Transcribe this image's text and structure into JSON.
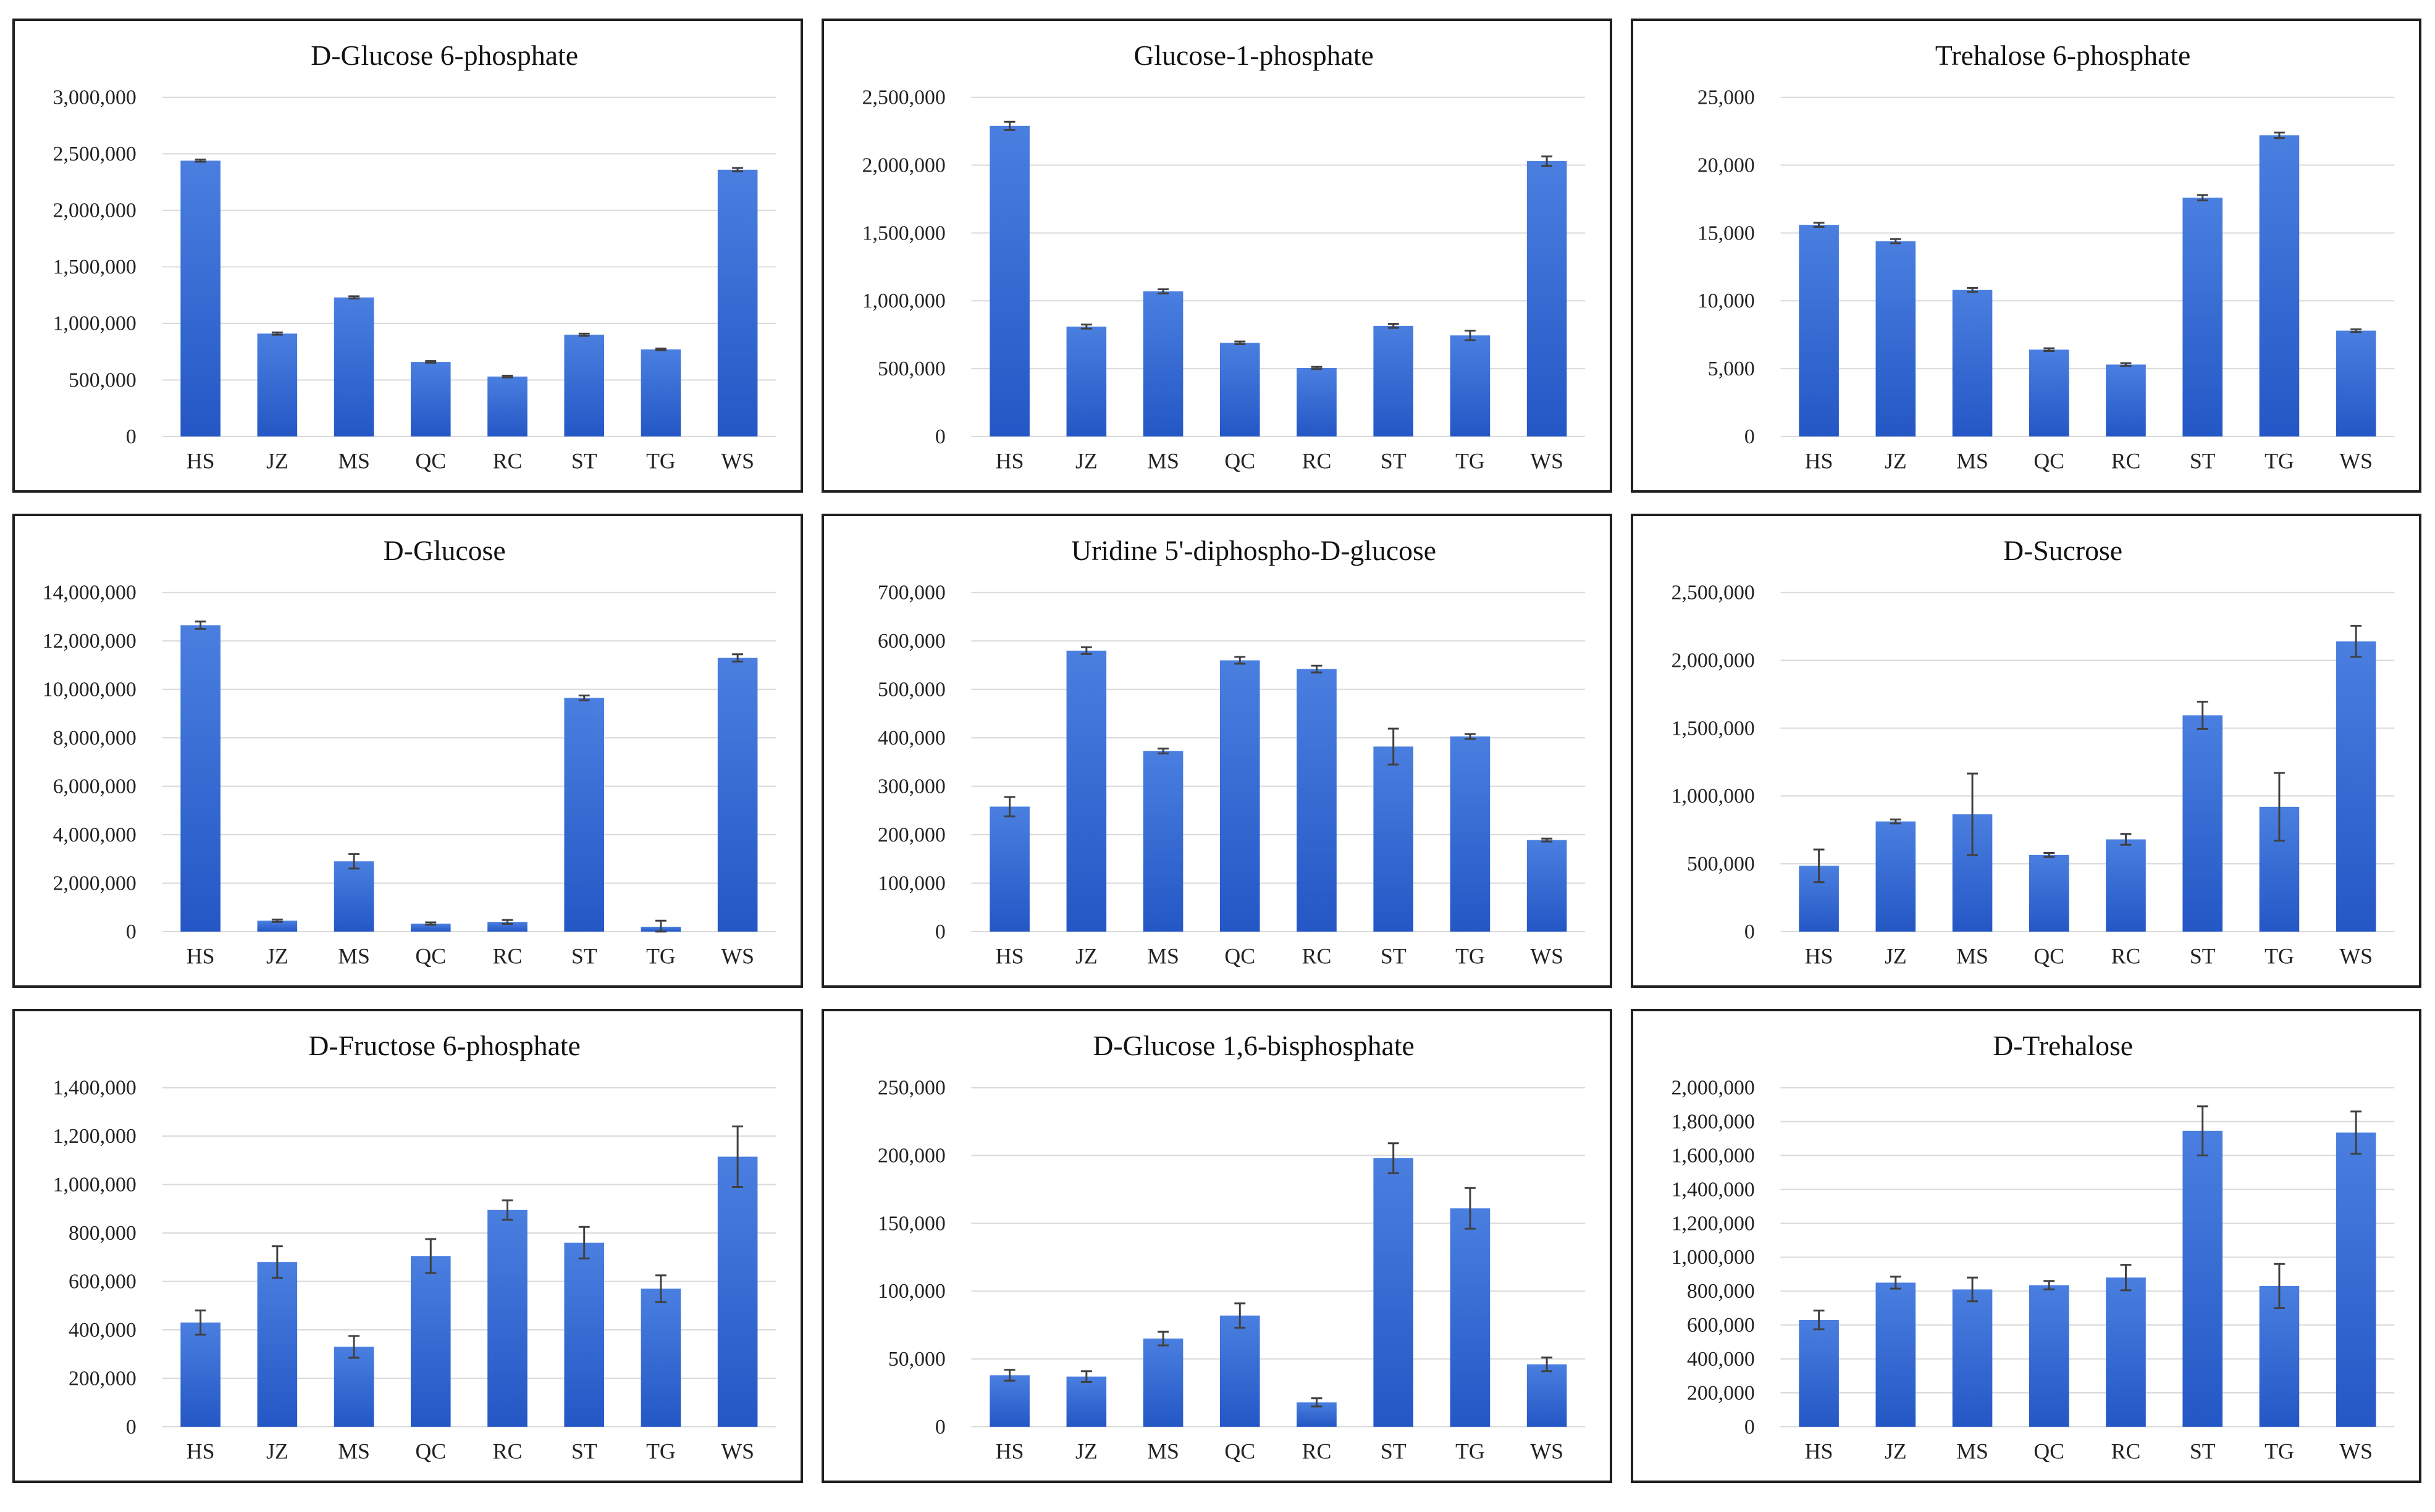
{
  "colors": {
    "bar_top": "#4a7fe0",
    "bar_bottom": "#2457c5",
    "grid": "#d9d9d9",
    "error": "#404040"
  },
  "chart_data": [
    {
      "type": "bar",
      "title": "D-Glucose 6-phosphate",
      "categories": [
        "HS",
        "JZ",
        "MS",
        "QC",
        "RC",
        "ST",
        "TG",
        "WS"
      ],
      "values": [
        2440000,
        910000,
        1230000,
        660000,
        530000,
        900000,
        770000,
        2360000
      ],
      "errors": [
        10000,
        10000,
        10000,
        8000,
        8000,
        10000,
        8000,
        15000
      ],
      "ylim": [
        0,
        3000000
      ],
      "yticks": [
        "0",
        "500,000",
        "1,000,000",
        "1,500,000",
        "2,000,000",
        "2,500,000",
        "3,000,000"
      ],
      "xlabel": "",
      "ylabel": ""
    },
    {
      "type": "bar",
      "title": "Glucose-1-phosphate",
      "categories": [
        "HS",
        "JZ",
        "MS",
        "QC",
        "RC",
        "ST",
        "TG",
        "WS"
      ],
      "values": [
        2290000,
        810000,
        1070000,
        690000,
        505000,
        815000,
        745000,
        2030000
      ],
      "errors": [
        30000,
        15000,
        15000,
        10000,
        8000,
        15000,
        35000,
        35000
      ],
      "ylim": [
        0,
        2500000
      ],
      "yticks": [
        "0",
        "500,000",
        "1,000,000",
        "1,500,000",
        "2,000,000",
        "2,500,000"
      ],
      "xlabel": "",
      "ylabel": ""
    },
    {
      "type": "bar",
      "title": "Trehalose 6-phosphate",
      "categories": [
        "HS",
        "JZ",
        "MS",
        "QC",
        "RC",
        "ST",
        "TG",
        "WS"
      ],
      "values": [
        15600,
        14400,
        10800,
        6400,
        5300,
        17600,
        22200,
        7800
      ],
      "errors": [
        150,
        150,
        150,
        100,
        100,
        200,
        200,
        100
      ],
      "ylim": [
        0,
        25000
      ],
      "yticks": [
        "0",
        "5,000",
        "10,000",
        "15,000",
        "20,000",
        "25,000"
      ],
      "xlabel": "",
      "ylabel": ""
    },
    {
      "type": "bar",
      "title": "D-Glucose",
      "categories": [
        "HS",
        "JZ",
        "MS",
        "QC",
        "RC",
        "ST",
        "TG",
        "WS"
      ],
      "values": [
        12650000,
        450000,
        2900000,
        330000,
        400000,
        9650000,
        200000,
        11300000
      ],
      "errors": [
        150000,
        50000,
        300000,
        50000,
        80000,
        100000,
        250000,
        150000
      ],
      "ylim": [
        0,
        14000000
      ],
      "yticks": [
        "0",
        "2,000,000",
        "4,000,000",
        "6,000,000",
        "8,000,000",
        "10,000,000",
        "12,000,000",
        "14,000,000"
      ],
      "xlabel": "",
      "ylabel": ""
    },
    {
      "type": "bar",
      "title": "Uridine 5'-diphospho-D-glucose",
      "categories": [
        "HS",
        "JZ",
        "MS",
        "QC",
        "RC",
        "ST",
        "TG",
        "WS"
      ],
      "values": [
        258000,
        580000,
        373000,
        560000,
        542000,
        382000,
        403000,
        189000
      ],
      "errors": [
        20000,
        7000,
        5000,
        7000,
        7000,
        37000,
        5000,
        3000
      ],
      "ylim": [
        0,
        700000
      ],
      "yticks": [
        "0",
        "100,000",
        "200,000",
        "300,000",
        "400,000",
        "500,000",
        "600,000",
        "700,000"
      ],
      "xlabel": "",
      "ylabel": ""
    },
    {
      "type": "bar",
      "title": "D-Sucrose",
      "categories": [
        "HS",
        "JZ",
        "MS",
        "QC",
        "RC",
        "ST",
        "TG",
        "WS"
      ],
      "values": [
        485000,
        812000,
        865000,
        565000,
        680000,
        1595000,
        920000,
        2140000
      ],
      "errors": [
        120000,
        15000,
        300000,
        15000,
        40000,
        100000,
        250000,
        115000
      ],
      "ylim": [
        0,
        2500000
      ],
      "yticks": [
        "0",
        "500,000",
        "1,000,000",
        "1,500,000",
        "2,000,000",
        "2,500,000"
      ],
      "xlabel": "",
      "ylabel": ""
    },
    {
      "type": "bar",
      "title": "D-Fructose 6-phosphate",
      "categories": [
        "HS",
        "JZ",
        "MS",
        "QC",
        "RC",
        "ST",
        "TG",
        "WS"
      ],
      "values": [
        430000,
        680000,
        330000,
        705000,
        895000,
        760000,
        570000,
        1115000
      ],
      "errors": [
        50000,
        65000,
        45000,
        70000,
        40000,
        65000,
        55000,
        125000
      ],
      "ylim": [
        0,
        1400000
      ],
      "yticks": [
        "0",
        "200,000",
        "400,000",
        "600,000",
        "800,000",
        "1,000,000",
        "1,200,000",
        "1,400,000"
      ],
      "xlabel": "",
      "ylabel": ""
    },
    {
      "type": "bar",
      "title": "D-Glucose 1,6-bisphosphate",
      "categories": [
        "HS",
        "JZ",
        "MS",
        "QC",
        "RC",
        "ST",
        "TG",
        "WS"
      ],
      "values": [
        38000,
        37000,
        65000,
        82000,
        18000,
        198000,
        161000,
        46000
      ],
      "errors": [
        4000,
        4000,
        5000,
        9000,
        3000,
        11000,
        15000,
        5000
      ],
      "ylim": [
        0,
        250000
      ],
      "yticks": [
        "0",
        "50,000",
        "100,000",
        "150,000",
        "200,000",
        "250,000"
      ],
      "xlabel": "",
      "ylabel": ""
    },
    {
      "type": "bar",
      "title": "D-Trehalose",
      "categories": [
        "HS",
        "JZ",
        "MS",
        "QC",
        "RC",
        "ST",
        "TG",
        "WS"
      ],
      "values": [
        630000,
        850000,
        810000,
        835000,
        880000,
        1745000,
        830000,
        1735000
      ],
      "errors": [
        55000,
        35000,
        70000,
        25000,
        75000,
        145000,
        130000,
        125000
      ],
      "ylim": [
        0,
        2000000
      ],
      "yticks": [
        "0",
        "200,000",
        "400,000",
        "600,000",
        "800,000",
        "1,000,000",
        "1,200,000",
        "1,400,000",
        "1,600,000",
        "1,800,000",
        "2,000,000"
      ],
      "xlabel": "",
      "ylabel": ""
    }
  ]
}
